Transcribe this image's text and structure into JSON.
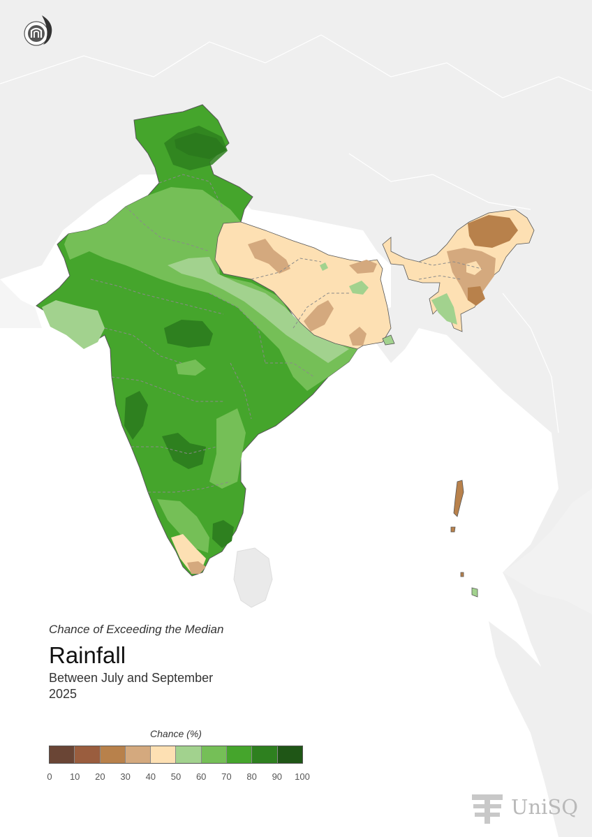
{
  "map": {
    "subtitle": "Chance of Exceeding the Median",
    "title": "Rainfall",
    "period": "Between July and September",
    "year": "2025"
  },
  "legend": {
    "title": "Chance (%)",
    "ticks": [
      "0",
      "10",
      "20",
      "30",
      "40",
      "50",
      "60",
      "70",
      "80",
      "90",
      "100"
    ],
    "colors": [
      "#6a4535",
      "#9a5d3e",
      "#b8814b",
      "#d4a97e",
      "#fde0b3",
      "#a2d28e",
      "#75bf57",
      "#45a52c",
      "#2e801f",
      "#1f5616"
    ]
  },
  "logos": {
    "top_left": "institution-logo",
    "bottom_right_text": "UniSQ"
  }
}
